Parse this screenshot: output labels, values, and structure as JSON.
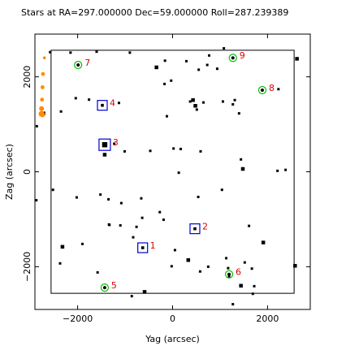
{
  "chart_data": {
    "type": "scatter",
    "title": "Stars at RA=297.000000 Dec=59.000000 Roll=287.239389",
    "xlabel": "Yag (arcsec)",
    "ylabel": "Zag (arcsec)",
    "xlim": [
      -2900,
      2900
    ],
    "ylim": [
      -2900,
      2900
    ],
    "xticks": [
      -2000,
      0,
      2000
    ],
    "yticks": [
      -2000,
      0,
      2000
    ],
    "xtick_labels": [
      "−2000",
      "0",
      "2000"
    ],
    "ytick_labels": [
      "−2000",
      "0",
      "2000"
    ],
    "grid": false,
    "ccd_box": {
      "yag": [
        -2560,
        2560
      ],
      "zag": [
        -2560,
        2560
      ]
    },
    "colors": {
      "star": "#000000",
      "guide": "#00c000",
      "acq": "#0000cc",
      "label": "#e00000",
      "offchip": "#ff8c00"
    },
    "guide_stars": [
      {
        "id": "7",
        "yag": -1990,
        "zag": 2250
      },
      {
        "id": "9",
        "yag": 1270,
        "zag": 2400
      },
      {
        "id": "8",
        "yag": 1890,
        "zag": 1720
      },
      {
        "id": "5",
        "yag": -1430,
        "zag": -2440
      },
      {
        "id": "6",
        "yag": 1190,
        "zag": -2160
      }
    ],
    "acq_stars": [
      {
        "id": "4",
        "yag": -1480,
        "zag": 1400
      },
      {
        "id": "3",
        "yag": -1430,
        "zag": 570
      },
      {
        "id": "2",
        "yag": 470,
        "zag": -1200
      },
      {
        "id": "1",
        "yag": -630,
        "zag": -1600
      }
    ],
    "field_stars": [
      [
        -1600,
        2530,
        2
      ],
      [
        -900,
        2510,
        2
      ],
      [
        -160,
        2340,
        2
      ],
      [
        -340,
        2200,
        3
      ],
      [
        -30,
        1920,
        2
      ],
      [
        290,
        2330,
        2
      ],
      [
        730,
        2250,
        2
      ],
      [
        550,
        2150,
        2
      ],
      [
        940,
        2170,
        2
      ],
      [
        -1760,
        1520,
        2
      ],
      [
        -2040,
        1550,
        2
      ],
      [
        -2350,
        1270,
        2
      ],
      [
        -1130,
        1450,
        2
      ],
      [
        -170,
        1850,
        2
      ],
      [
        370,
        1480,
        2
      ],
      [
        430,
        1510,
        3
      ],
      [
        480,
        1390,
        3
      ],
      [
        510,
        1310,
        2
      ],
      [
        650,
        1460,
        2
      ],
      [
        1060,
        1480,
        2
      ],
      [
        1310,
        1510,
        2
      ],
      [
        1400,
        1230,
        2
      ],
      [
        1270,
        1420,
        2
      ],
      [
        2230,
        1740,
        2
      ],
      [
        -2150,
        2510,
        2
      ],
      [
        -1230,
        590,
        2
      ],
      [
        -1430,
        360,
        3
      ],
      [
        -1010,
        430,
        2
      ],
      [
        -470,
        440,
        2
      ],
      [
        20,
        490,
        2
      ],
      [
        170,
        480,
        2
      ],
      [
        590,
        430,
        2
      ],
      [
        1440,
        260,
        2
      ],
      [
        1480,
        60,
        3
      ],
      [
        2210,
        20,
        2
      ],
      [
        2380,
        40,
        2
      ],
      [
        130,
        -20,
        2
      ],
      [
        -2020,
        -540,
        2
      ],
      [
        -1520,
        -480,
        2
      ],
      [
        -1350,
        -580,
        2
      ],
      [
        -1080,
        -660,
        2
      ],
      [
        -660,
        -560,
        2
      ],
      [
        -1100,
        -1130,
        2
      ],
      [
        -1330,
        -1120,
        2
      ],
      [
        -1900,
        -1520,
        2
      ],
      [
        -2320,
        -1580,
        3
      ],
      [
        -640,
        -970,
        2
      ],
      [
        -830,
        -1380,
        2
      ],
      [
        -270,
        -850,
        2
      ],
      [
        -190,
        -1010,
        2
      ],
      [
        -760,
        -1160,
        2
      ],
      [
        50,
        -1650,
        2
      ],
      [
        -20,
        -1990,
        2
      ],
      [
        330,
        -1860,
        3
      ],
      [
        580,
        -2100,
        2
      ],
      [
        750,
        -2000,
        2
      ],
      [
        1130,
        -1820,
        2
      ],
      [
        1170,
        -2030,
        2
      ],
      [
        1520,
        -1910,
        2
      ],
      [
        1670,
        -2040,
        2
      ],
      [
        1610,
        -1140,
        2
      ],
      [
        1910,
        -1490,
        3
      ],
      [
        1720,
        -2410,
        2
      ],
      [
        1690,
        -2570,
        2
      ],
      [
        1190,
        -2200,
        2
      ],
      [
        1440,
        -2400,
        3
      ],
      [
        -860,
        -2620,
        2
      ],
      [
        -1580,
        -2120,
        2
      ],
      [
        -2370,
        -1930,
        2
      ],
      [
        -590,
        -2530,
        3
      ],
      [
        1270,
        -2790,
        2
      ],
      [
        1080,
        2600,
        2
      ],
      [
        770,
        2450,
        2
      ],
      [
        -120,
        1170,
        2
      ],
      [
        540,
        -530,
        2
      ],
      [
        1040,
        -380,
        2
      ],
      [
        -2520,
        -380,
        2
      ],
      [
        2620,
        2380,
        3
      ],
      [
        2580,
        -1980,
        3
      ],
      [
        -2870,
        -600,
        2
      ],
      [
        -2860,
        960,
        2
      ],
      [
        -2720,
        1230,
        3
      ],
      [
        -1340,
        -1110,
        2
      ],
      [
        -2580,
        2520,
        2
      ]
    ],
    "offchip_stars": [
      [
        -2700,
        2400,
        3
      ],
      [
        -2730,
        2060,
        4
      ],
      [
        -2740,
        1780,
        4
      ],
      [
        -2750,
        1520,
        4
      ],
      [
        -2760,
        1330,
        5
      ],
      [
        -2760,
        1220,
        6
      ],
      [
        -2740,
        1200,
        5
      ]
    ]
  }
}
